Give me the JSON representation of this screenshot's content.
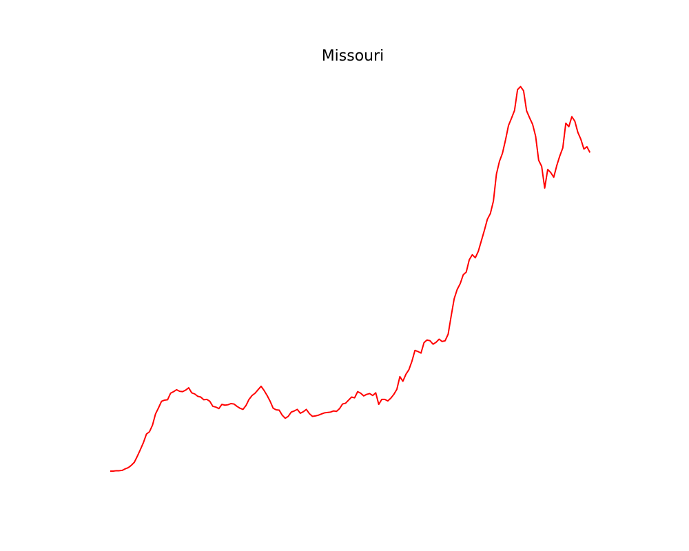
{
  "chart_data": {
    "type": "line",
    "title": "Missouri",
    "xlabel": "",
    "ylabel": "",
    "axes_visible": false,
    "grid": false,
    "legend": "none",
    "xlim": [
      0,
      161
    ],
    "ylim": [
      0,
      100
    ],
    "series": [
      {
        "color": "#ff0000",
        "values": [
          0.0,
          0.0,
          0.1,
          0.1,
          0.2,
          0.6,
          0.9,
          1.5,
          2.3,
          3.9,
          5.6,
          7.4,
          9.6,
          10.2,
          11.9,
          14.8,
          16.4,
          18.1,
          18.4,
          18.5,
          20.2,
          20.6,
          21.1,
          20.7,
          20.6,
          21.0,
          21.6,
          20.3,
          20.0,
          19.4,
          19.2,
          18.5,
          18.6,
          18.1,
          16.8,
          16.6,
          16.2,
          17.3,
          17.1,
          17.2,
          17.5,
          17.4,
          16.8,
          16.3,
          16.0,
          17.0,
          18.6,
          19.6,
          20.2,
          21.1,
          22.0,
          20.9,
          19.6,
          18.1,
          16.3,
          15.9,
          15.8,
          14.5,
          13.7,
          14.2,
          15.3,
          15.6,
          16.0,
          15.0,
          15.4,
          16.0,
          14.9,
          14.2,
          14.3,
          14.5,
          14.8,
          15.1,
          15.2,
          15.3,
          15.6,
          15.5,
          16.2,
          17.4,
          17.6,
          18.4,
          19.2,
          19.0,
          20.6,
          20.2,
          19.5,
          19.9,
          20.1,
          19.6,
          20.3,
          17.3,
          18.6,
          18.6,
          18.2,
          18.9,
          19.9,
          21.2,
          24.5,
          23.3,
          25.1,
          26.3,
          28.5,
          31.3,
          31.0,
          30.6,
          33.3,
          34.0,
          33.8,
          32.9,
          33.4,
          34.2,
          33.6,
          33.8,
          35.5,
          40.2,
          44.7,
          47.1,
          48.6,
          50.9,
          51.6,
          54.8,
          56.1,
          55.3,
          57.0,
          59.7,
          62.4,
          65.3,
          66.8,
          70.0,
          77.0,
          80.3,
          82.4,
          85.8,
          89.6,
          91.5,
          93.5,
          98.9,
          99.7,
          98.6,
          93.4,
          91.6,
          89.9,
          86.8,
          80.6,
          79.0,
          73.4,
          78.2,
          77.4,
          76.2,
          79.2,
          81.7,
          83.8,
          90.2,
          89.3,
          91.9,
          90.7,
          87.8,
          86.0,
          83.5,
          84.1,
          82.6
        ]
      }
    ]
  }
}
